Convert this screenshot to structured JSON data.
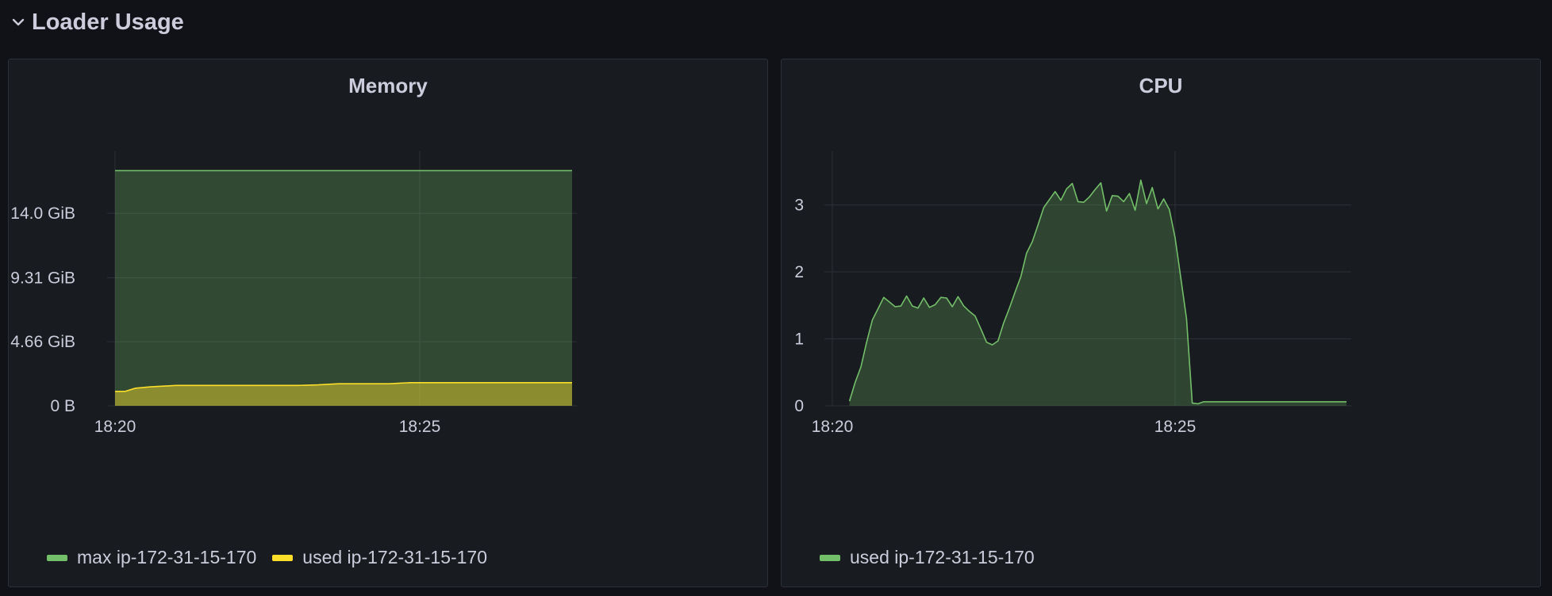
{
  "row": {
    "title": "Loader Usage"
  },
  "colors": {
    "green": "#73bf69",
    "yellow": "#fade2a",
    "grid": "#2c3037",
    "panel_bg": "#181b1f"
  },
  "icons": {
    "row_toggle": "chevron-down-icon"
  },
  "chart_data": [
    {
      "type": "area",
      "title": "Memory",
      "x_ticks": [
        "18:20",
        "18:25"
      ],
      "x_range": [
        "18:20",
        "18:27:30"
      ],
      "y_ticks": [
        "0 B",
        "4.66 GiB",
        "9.31 GiB",
        "14.0 GiB"
      ],
      "y_unit": "GiB",
      "ylim": [
        0,
        18.5
      ],
      "grid": true,
      "legend_placement": "bottom-left",
      "series": [
        {
          "name": "max ip-172-31-15-170",
          "color": "#73bf69",
          "x": [
            "18:20",
            "18:27:30"
          ],
          "values": [
            17.1,
            17.1
          ]
        },
        {
          "name": "used ip-172-31-15-170",
          "color": "#fade2a",
          "x": [
            "18:20",
            "18:20:10",
            "18:20:20",
            "18:20:35",
            "18:21",
            "18:22",
            "18:23",
            "18:23:20",
            "18:23:40",
            "18:24",
            "18:24:30",
            "18:24:50",
            "18:25",
            "18:26",
            "18:27",
            "18:27:30"
          ],
          "values": [
            1.05,
            1.05,
            1.28,
            1.38,
            1.48,
            1.48,
            1.48,
            1.52,
            1.6,
            1.6,
            1.6,
            1.68,
            1.68,
            1.68,
            1.68,
            1.68
          ]
        }
      ]
    },
    {
      "type": "area",
      "title": "CPU",
      "x_ticks": [
        "18:20",
        "18:25"
      ],
      "x_range": [
        "18:20",
        "18:27:30"
      ],
      "y_ticks": [
        "0",
        "1",
        "2",
        "3"
      ],
      "ylim": [
        0,
        3.8
      ],
      "grid": true,
      "legend_placement": "bottom-left",
      "series": [
        {
          "name": "used ip-172-31-15-170",
          "color": "#73bf69",
          "x": [
            "18:20:15",
            "18:20:20",
            "18:20:25",
            "18:20:30",
            "18:20:35",
            "18:20:45",
            "18:20:55",
            "18:21:00",
            "18:21:05",
            "18:21:10",
            "18:21:15",
            "18:21:20",
            "18:21:25",
            "18:21:30",
            "18:21:35",
            "18:21:40",
            "18:21:45",
            "18:21:50",
            "18:21:55",
            "18:22:00",
            "18:22:05",
            "18:22:10",
            "18:22:15",
            "18:22:20",
            "18:22:25",
            "18:22:30",
            "18:22:35",
            "18:22:40",
            "18:22:45",
            "18:22:50",
            "18:22:55",
            "18:23:00",
            "18:23:05",
            "18:23:10",
            "18:23:15",
            "18:23:20",
            "18:23:25",
            "18:23:30",
            "18:23:35",
            "18:23:40",
            "18:23:45",
            "18:23:50",
            "18:23:55",
            "18:24:00",
            "18:24:05",
            "18:24:10",
            "18:24:15",
            "18:24:20",
            "18:24:25",
            "18:24:30",
            "18:24:35",
            "18:24:40",
            "18:24:45",
            "18:24:50",
            "18:24:55",
            "18:25:00",
            "18:25:05",
            "18:25:10",
            "18:25:15",
            "18:25:20",
            "18:25:25",
            "18:25:30",
            "18:26:00",
            "18:27:00",
            "18:27:30"
          ],
          "values": [
            0.07,
            0.35,
            0.58,
            0.95,
            1.28,
            1.62,
            1.48,
            1.49,
            1.64,
            1.49,
            1.46,
            1.61,
            1.47,
            1.51,
            1.62,
            1.61,
            1.48,
            1.63,
            1.49,
            1.41,
            1.34,
            1.15,
            0.95,
            0.91,
            0.97,
            1.24,
            1.46,
            1.7,
            1.93,
            2.28,
            2.45,
            2.7,
            2.96,
            3.08,
            3.2,
            3.07,
            3.24,
            3.32,
            3.05,
            3.04,
            3.12,
            3.23,
            3.33,
            2.91,
            3.14,
            3.13,
            3.05,
            3.17,
            2.92,
            3.37,
            3.02,
            3.26,
            2.94,
            3.09,
            2.93,
            2.51,
            1.91,
            1.3,
            0.04,
            0.03,
            0.06,
            0.06,
            0.06,
            0.06,
            0.06
          ]
        }
      ]
    }
  ]
}
